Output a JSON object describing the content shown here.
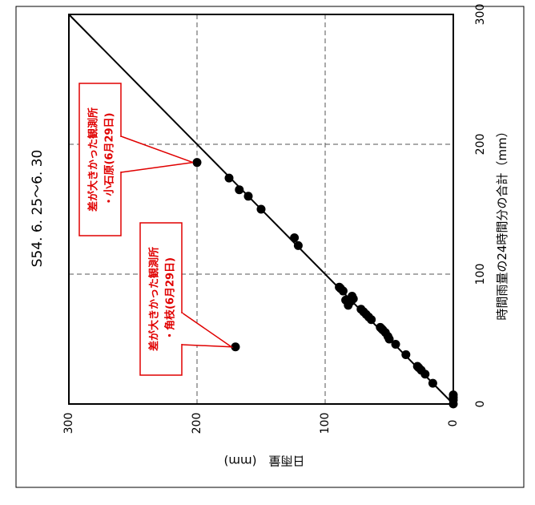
{
  "chart_data": {
    "type": "scatter",
    "title": "S54. 6. 25〜6. 30",
    "xlabel": "時間雨量の24時間分の合計（mm）",
    "ylabel": "日雨量　(mm)",
    "xlim": [
      0,
      300
    ],
    "ylim": [
      0,
      300
    ],
    "x_ticks": [
      "0",
      "100",
      "200",
      "300"
    ],
    "y_ticks": [
      "0",
      "100",
      "200",
      "300"
    ],
    "grid": true,
    "reference_line": "y = x",
    "points": [
      {
        "x": 0,
        "y": 0
      },
      {
        "x": 3,
        "y": 0
      },
      {
        "x": 5,
        "y": 0
      },
      {
        "x": 7,
        "y": 0
      },
      {
        "x": 16,
        "y": 16
      },
      {
        "x": 23,
        "y": 22
      },
      {
        "x": 26,
        "y": 25
      },
      {
        "x": 28,
        "y": 27
      },
      {
        "x": 29,
        "y": 28
      },
      {
        "x": 38,
        "y": 37
      },
      {
        "x": 46,
        "y": 45
      },
      {
        "x": 50,
        "y": 50
      },
      {
        "x": 52,
        "y": 51
      },
      {
        "x": 55,
        "y": 53
      },
      {
        "x": 57,
        "y": 55
      },
      {
        "x": 58,
        "y": 56
      },
      {
        "x": 59,
        "y": 57
      },
      {
        "x": 65,
        "y": 64
      },
      {
        "x": 67,
        "y": 66
      },
      {
        "x": 69,
        "y": 68
      },
      {
        "x": 71,
        "y": 70
      },
      {
        "x": 73,
        "y": 72
      },
      {
        "x": 76,
        "y": 82
      },
      {
        "x": 79,
        "y": 80
      },
      {
        "x": 80,
        "y": 84
      },
      {
        "x": 81,
        "y": 78
      },
      {
        "x": 83,
        "y": 79
      },
      {
        "x": 87,
        "y": 86
      },
      {
        "x": 89,
        "y": 88
      },
      {
        "x": 90,
        "y": 89
      },
      {
        "x": 122,
        "y": 121
      },
      {
        "x": 128,
        "y": 124
      },
      {
        "x": 150,
        "y": 150
      },
      {
        "x": 160,
        "y": 160
      },
      {
        "x": 165,
        "y": 167
      },
      {
        "x": 174,
        "y": 175
      },
      {
        "x": 186,
        "y": 200
      },
      {
        "x": 44,
        "y": 170
      }
    ],
    "annotations": [
      {
        "lines": [
          "差が大きかった観測所",
          "・小石原(6月29日)"
        ],
        "x": 186,
        "y": 200
      },
      {
        "lines": [
          "差が大きかった観測所",
          "・角枝(6月29日)"
        ],
        "x": 44,
        "y": 170
      }
    ],
    "colors": {
      "annotation": "#e00000",
      "points": "#000000"
    }
  }
}
